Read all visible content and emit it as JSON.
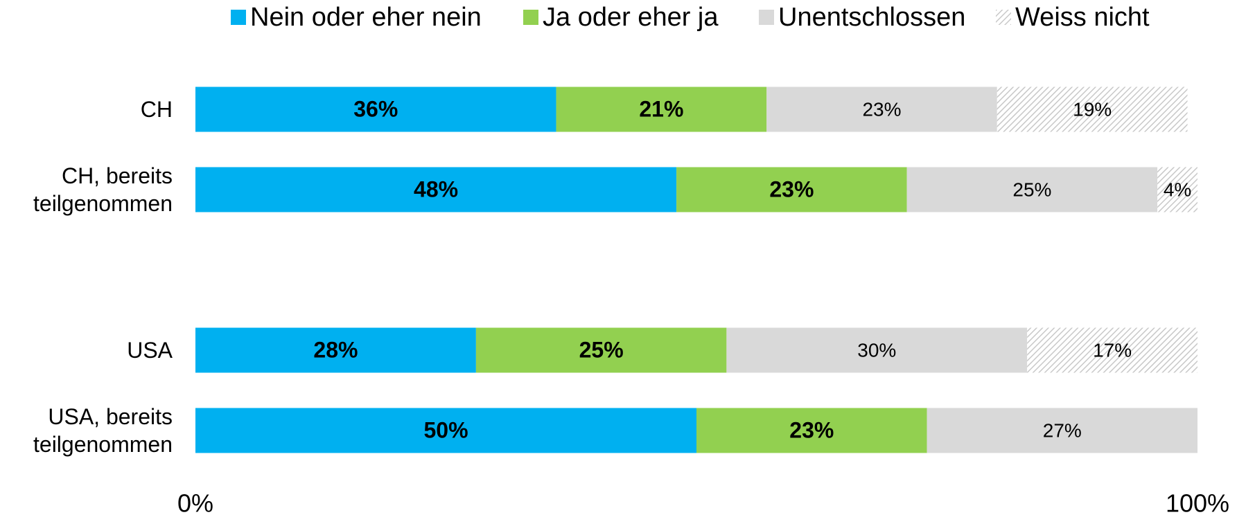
{
  "chart_data": {
    "type": "stacked-bar-horizontal",
    "categories": [
      "CH",
      "CH, bereits teilgenommen",
      null,
      "USA",
      "USA, bereits teilgenommen"
    ],
    "series": [
      {
        "name": "Nein oder eher nein",
        "color": "#00b0f0",
        "values": [
          36,
          48,
          null,
          28,
          50
        ],
        "value_labels": [
          "36%",
          "48%",
          null,
          "28%",
          "50%"
        ]
      },
      {
        "name": "Ja oder eher ja",
        "color": "#92d050",
        "values": [
          21,
          23,
          null,
          25,
          23
        ],
        "value_labels": [
          "21%",
          "23%",
          null,
          "25%",
          "23%"
        ]
      },
      {
        "name": "Unentschlossen",
        "color": "#d9d9d9",
        "values": [
          23,
          25,
          null,
          30,
          27
        ],
        "value_labels": [
          "23%",
          "25%",
          null,
          "30%",
          "27%"
        ]
      },
      {
        "name": "Weiss nicht",
        "color": "#d9d9d9",
        "pattern": "hatch",
        "values": [
          19,
          4,
          null,
          17,
          null
        ],
        "value_labels": [
          "19%",
          "4%",
          null,
          "17%",
          null
        ]
      }
    ],
    "xlim": [
      0,
      100
    ],
    "xticks": [
      {
        "value": 0,
        "label": "0%"
      },
      {
        "value": 100,
        "label": "100%"
      }
    ],
    "legend": "top"
  }
}
